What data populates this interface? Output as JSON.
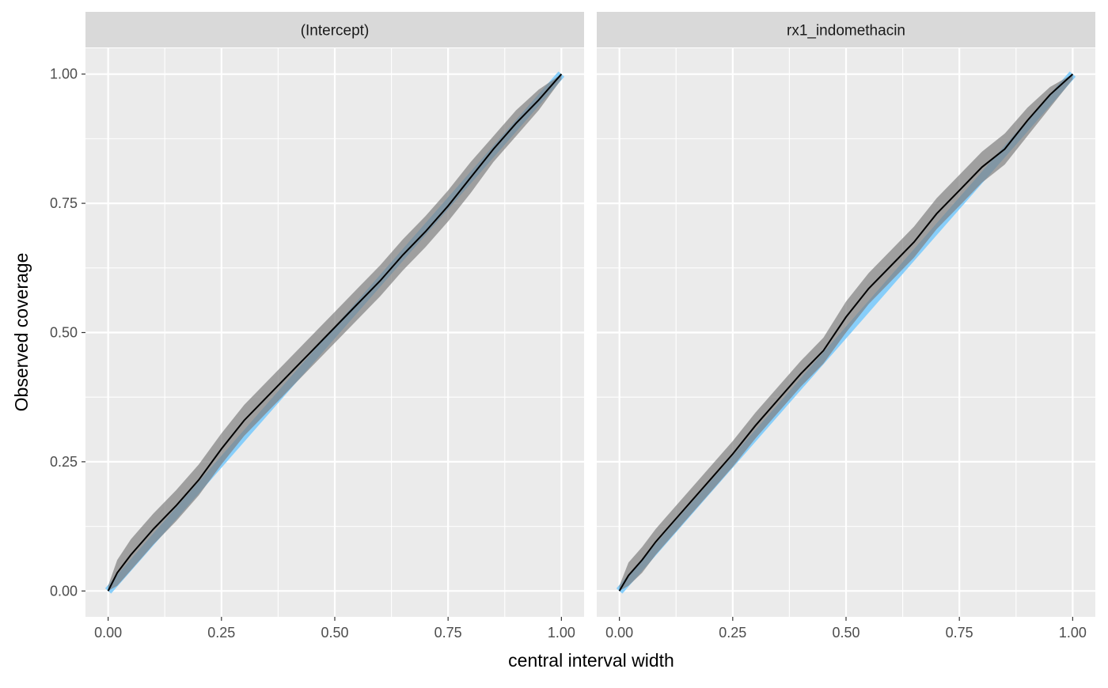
{
  "chart_data": {
    "type": "line",
    "xlabel": "central interval width",
    "ylabel": "Observed coverage",
    "xlim": [
      -0.05,
      1.05
    ],
    "ylim": [
      -0.05,
      1.05
    ],
    "x_ticks": [
      0,
      0.25,
      0.5,
      0.75,
      1
    ],
    "x_tick_labels": [
      "0.00",
      "0.25",
      "0.50",
      "0.75",
      "1.00"
    ],
    "y_ticks": [
      0,
      0.25,
      0.5,
      0.75,
      1
    ],
    "y_tick_labels": [
      "0.00",
      "0.25",
      "0.50",
      "0.75",
      "1.00"
    ],
    "grid": true,
    "legend": "none",
    "colors": {
      "panel_background": "#ebebeb",
      "strip_background": "#d9d9d9",
      "grid": "#ffffff",
      "reference_line": "#87cefa",
      "band": "#7f7f7f",
      "observed_line": "#000000"
    },
    "panels": [
      {
        "strip_label": "(Intercept)",
        "x": [
          0,
          0.02,
          0.05,
          0.08,
          0.1,
          0.15,
          0.2,
          0.25,
          0.3,
          0.35,
          0.4,
          0.45,
          0.5,
          0.55,
          0.6,
          0.65,
          0.7,
          0.75,
          0.8,
          0.85,
          0.9,
          0.95,
          1
        ],
        "observed": [
          0,
          0.035,
          0.07,
          0.1,
          0.12,
          0.165,
          0.215,
          0.275,
          0.33,
          0.375,
          0.42,
          0.465,
          0.51,
          0.555,
          0.6,
          0.65,
          0.695,
          0.745,
          0.8,
          0.855,
          0.905,
          0.95,
          1
        ],
        "band_lower": [
          0,
          0.01,
          0.04,
          0.07,
          0.09,
          0.135,
          0.185,
          0.245,
          0.3,
          0.345,
          0.39,
          0.435,
          0.48,
          0.525,
          0.57,
          0.62,
          0.665,
          0.715,
          0.77,
          0.83,
          0.88,
          0.93,
          0.99
        ],
        "band_upper": [
          0.01,
          0.06,
          0.1,
          0.13,
          0.15,
          0.195,
          0.245,
          0.305,
          0.36,
          0.405,
          0.45,
          0.495,
          0.54,
          0.585,
          0.63,
          0.68,
          0.725,
          0.775,
          0.83,
          0.88,
          0.93,
          0.97,
          1
        ]
      },
      {
        "strip_label": "rx1_indomethacin",
        "x": [
          0,
          0.02,
          0.05,
          0.08,
          0.1,
          0.15,
          0.2,
          0.25,
          0.3,
          0.35,
          0.4,
          0.45,
          0.5,
          0.55,
          0.6,
          0.65,
          0.7,
          0.75,
          0.8,
          0.85,
          0.9,
          0.95,
          1
        ],
        "observed": [
          0,
          0.03,
          0.06,
          0.095,
          0.115,
          0.165,
          0.215,
          0.265,
          0.32,
          0.37,
          0.42,
          0.465,
          0.53,
          0.585,
          0.63,
          0.675,
          0.73,
          0.775,
          0.82,
          0.855,
          0.91,
          0.96,
          1
        ],
        "band_lower": [
          0,
          0.01,
          0.035,
          0.07,
          0.09,
          0.14,
          0.19,
          0.24,
          0.295,
          0.345,
          0.395,
          0.44,
          0.5,
          0.555,
          0.6,
          0.645,
          0.7,
          0.745,
          0.79,
          0.825,
          0.88,
          0.935,
          0.99
        ],
        "band_upper": [
          0.01,
          0.055,
          0.085,
          0.12,
          0.14,
          0.19,
          0.24,
          0.29,
          0.345,
          0.395,
          0.445,
          0.49,
          0.56,
          0.615,
          0.66,
          0.705,
          0.76,
          0.805,
          0.85,
          0.885,
          0.935,
          0.975,
          1
        ]
      }
    ]
  }
}
